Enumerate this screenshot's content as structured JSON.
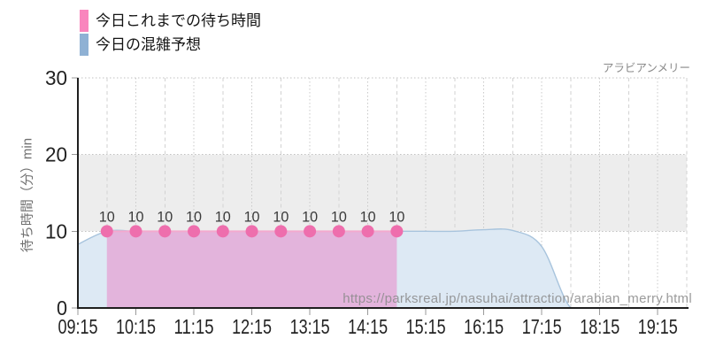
{
  "header": {
    "attraction_name": "アラビアンメリー"
  },
  "legend": {
    "items": [
      {
        "label": "今日これまでの待ち時間",
        "color": "#f985bd"
      },
      {
        "label": "今日の混雑予想",
        "color": "#8fb1d4"
      }
    ]
  },
  "watermark": "https://parksreal.jp/nasuhai/attraction/arabian_merry.html",
  "chart_data": {
    "type": "area",
    "title": "アラビアンメリー",
    "xlabel": "",
    "ylabel": "待ち時間（分）min",
    "ylim": [
      0,
      30
    ],
    "yticks": [
      0,
      10,
      20,
      30
    ],
    "xticks": [
      "09:15",
      "10:15",
      "11:15",
      "12:15",
      "13:15",
      "14:15",
      "15:15",
      "16:15",
      "17:15",
      "18:15",
      "19:15"
    ],
    "x_domain": [
      "09:15",
      "19:45"
    ],
    "grid": {
      "crowd_band": [
        10,
        20
      ],
      "band_color": "#ededed",
      "hour_line_color": "#c9c9c9",
      "half_hour_line_color": "#d2d2d2",
      "h_line_color": "#c2c2c2",
      "axis_color": "#1f1f1f",
      "tick_color": "#9a9a9a"
    },
    "legend_position": "top-left",
    "series": [
      {
        "name": "今日の混雑予想",
        "kind": "forecast",
        "style": "smooth-area",
        "fill": "#dde9f4",
        "stroke": "#a8c4dd",
        "x": [
          "09:15",
          "09:45",
          "10:15",
          "10:45",
          "11:15",
          "11:45",
          "12:15",
          "12:45",
          "13:15",
          "13:45",
          "14:15",
          "14:45",
          "15:15",
          "15:45",
          "16:15",
          "16:45",
          "17:15",
          "17:45",
          "18:15",
          "18:45",
          "19:15",
          "19:45"
        ],
        "values": [
          8.3,
          10,
          10,
          10,
          10,
          10,
          10,
          10,
          10,
          10,
          10,
          10,
          10,
          10,
          10.2,
          10.1,
          8,
          0,
          0,
          0,
          0,
          0
        ]
      },
      {
        "name": "今日これまでの待ち時間",
        "kind": "actual",
        "style": "area-with-points",
        "fill": "rgba(228,160,210,0.72)",
        "stroke": "#f3a9ce",
        "point_color": "#ee6ead",
        "point_label_color": "#3a3a3a",
        "show_point_labels": true,
        "x": [
          "09:45",
          "10:15",
          "10:45",
          "11:15",
          "11:45",
          "12:15",
          "12:45",
          "13:15",
          "13:45",
          "14:15",
          "14:45"
        ],
        "values": [
          10,
          10,
          10,
          10,
          10,
          10,
          10,
          10,
          10,
          10,
          10
        ]
      }
    ]
  }
}
